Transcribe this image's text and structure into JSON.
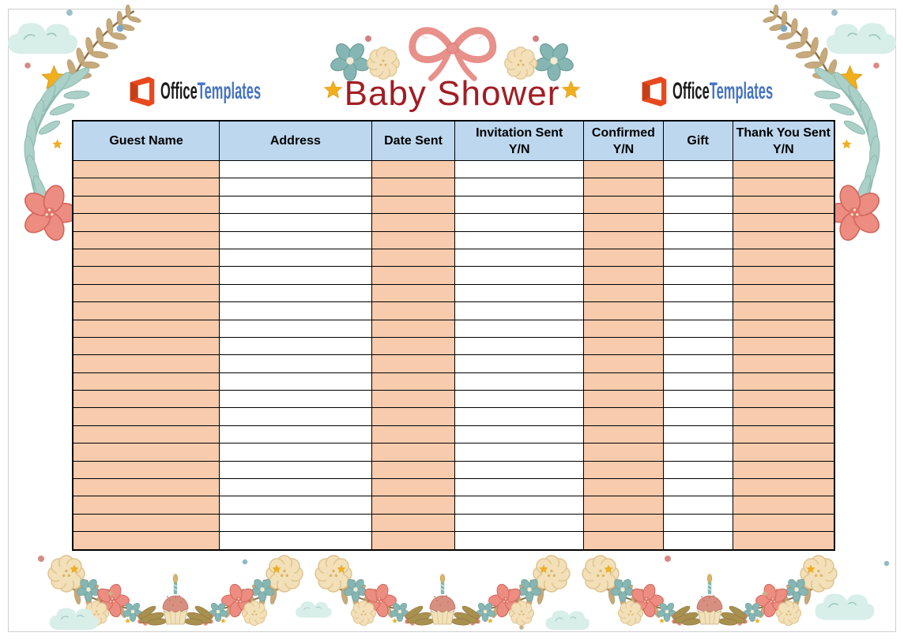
{
  "page": {
    "background": "#FFFFFF",
    "border_color": "#CFCFCF"
  },
  "title": {
    "text": "Baby Shower",
    "color": "#A11D23"
  },
  "logos": {
    "left": {
      "office": "Office",
      "templates": "Templates"
    },
    "right": {
      "office": "Office",
      "templates": "Templates"
    },
    "office_color": "#1B1B1B",
    "templates_color": "#4573C4",
    "icon_color": "#E8491D"
  },
  "table": {
    "header_bg": "#BDD7EE",
    "shaded_bg": "#F8CBAD",
    "unshaded_bg": "#FFFFFF",
    "border_color": "#000000",
    "row_count": 22,
    "columns": [
      {
        "label": "Guest Name",
        "sublabel": "",
        "width_pct": 19.25,
        "shaded": true
      },
      {
        "label": "Address",
        "sublabel": "",
        "width_pct": 19.98,
        "shaded": false
      },
      {
        "label": "Date Sent",
        "sublabel": "",
        "width_pct": 10.97,
        "shaded": true
      },
      {
        "label": "Invitation Sent",
        "sublabel": "Y/N",
        "width_pct": 16.87,
        "shaded": false
      },
      {
        "label": "Confirmed",
        "sublabel": "Y/N",
        "width_pct": 10.45,
        "shaded": true
      },
      {
        "label": "Gift",
        "sublabel": "",
        "width_pct": 9.11,
        "shaded": false
      },
      {
        "label": "Thank You Sent",
        "sublabel": "Y/N",
        "width_pct": 13.37,
        "shaded": true
      }
    ]
  },
  "decorations": {
    "icons": [
      "bow-icon",
      "cloud-icon",
      "fern-icon",
      "vine-icon",
      "flower-icon",
      "blossom-icon",
      "star-icon",
      "cupcake-icon",
      "branch-icon",
      "dot-icon"
    ],
    "accent_colors": {
      "bow": "#E8908A",
      "coral_flower": "#ED8C80",
      "teal_leaf": "#ABD0C8",
      "tan_leaf": "#C6AA7C",
      "gold_star": "#F2AF1D",
      "cloud": "#D8EEE9",
      "cream_blossom": "#F3E0B8",
      "teal_blossom": "#86B6B3",
      "olive_leaf": "#A8904F",
      "cupcake_frosting": "#D78F80",
      "cupcake_cup": "#F2E2BC",
      "candle": "#7FB9B0"
    }
  }
}
